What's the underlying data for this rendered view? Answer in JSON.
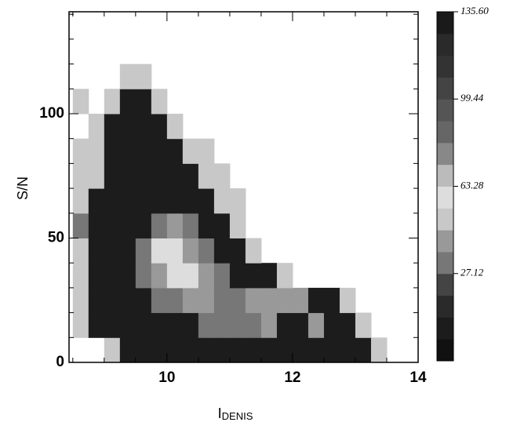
{
  "chart_data": {
    "type": "heatmap",
    "xlabel": "I",
    "xlabel_sub": "DENIS",
    "ylabel": "S/N",
    "xlim": [
      8.44,
      14
    ],
    "ylim": [
      0,
      141
    ],
    "xticks": [
      10,
      12,
      14
    ],
    "yticks": [
      0,
      50,
      100
    ],
    "xminorticks": [
      8.5,
      9,
      9.5,
      10.5,
      11,
      11.5,
      12.5,
      13,
      13.5
    ],
    "yminorticks": [
      10,
      20,
      30,
      40,
      60,
      70,
      80,
      90,
      110,
      120,
      130,
      140
    ],
    "xbins": [
      8.5,
      8.75,
      9,
      9.25,
      9.5,
      9.75,
      10,
      10.25,
      10.5,
      10.75,
      11,
      11.25,
      11.5,
      11.75,
      12,
      12.25,
      12.5,
      12.75,
      13,
      13.25,
      13.5,
      13.75
    ],
    "ybins": [
      0,
      10,
      20,
      30,
      40,
      50,
      60,
      70,
      80,
      90,
      100,
      110,
      120
    ],
    "z": [
      [
        null,
        null,
        48,
        5,
        5,
        5,
        5,
        5,
        5,
        5,
        5,
        5,
        5,
        5,
        5,
        5,
        5,
        5,
        5,
        48,
        null
      ],
      [
        48,
        5,
        5,
        5,
        5,
        5,
        5,
        5,
        30,
        30,
        30,
        30,
        40,
        5,
        5,
        40,
        5,
        5,
        48,
        null,
        null
      ],
      [
        48,
        5,
        5,
        5,
        5,
        30,
        30,
        40,
        40,
        30,
        30,
        40,
        40,
        40,
        40,
        5,
        5,
        48,
        null,
        null,
        null
      ],
      [
        48,
        5,
        5,
        5,
        30,
        40,
        58,
        58,
        40,
        30,
        5,
        5,
        5,
        48,
        null,
        null,
        null,
        null,
        null,
        null,
        null
      ],
      [
        48,
        5,
        5,
        5,
        30,
        58,
        58,
        40,
        30,
        5,
        5,
        48,
        null,
        null,
        null,
        null,
        null,
        null,
        null,
        null,
        null
      ],
      [
        30,
        5,
        5,
        5,
        5,
        30,
        40,
        30,
        5,
        5,
        48,
        null,
        null,
        null,
        null,
        null,
        null,
        null,
        null,
        null,
        null
      ],
      [
        48,
        5,
        5,
        5,
        5,
        5,
        5,
        5,
        5,
        48,
        48,
        null,
        null,
        null,
        null,
        null,
        null,
        null,
        null,
        null,
        null
      ],
      [
        48,
        48,
        5,
        5,
        5,
        5,
        5,
        5,
        48,
        48,
        null,
        null,
        null,
        null,
        null,
        null,
        null,
        null,
        null,
        null,
        null
      ],
      [
        48,
        48,
        5,
        5,
        5,
        5,
        5,
        48,
        48,
        null,
        null,
        null,
        null,
        null,
        null,
        null,
        null,
        null,
        null,
        null,
        null
      ],
      [
        null,
        48,
        5,
        5,
        5,
        5,
        48,
        null,
        null,
        null,
        null,
        null,
        null,
        null,
        null,
        null,
        null,
        null,
        null,
        null,
        null
      ],
      [
        48,
        null,
        48,
        5,
        5,
        48,
        null,
        null,
        null,
        null,
        null,
        null,
        null,
        null,
        null,
        null,
        null,
        null,
        null,
        null,
        null
      ],
      [
        null,
        null,
        null,
        48,
        48,
        null,
        null,
        null,
        null,
        null,
        null,
        null,
        null,
        null,
        null,
        null,
        null,
        null,
        null,
        null,
        null
      ]
    ],
    "colorbar": {
      "lim": [
        -9.04,
        135.6
      ],
      "colors": [
        "#111111",
        "#1c1c1c",
        "#2a2a2a",
        "#444444",
        "#777777",
        "#999999",
        "#c8c8c8",
        "#dddddd",
        "#bbbbbb",
        "#888888",
        "#666666",
        "#555555",
        "#444444",
        "#333333",
        "#2a2a2a",
        "#1a1a1a"
      ],
      "ticks": [
        {
          "value": 27.12,
          "label": "27.12"
        },
        {
          "value": 63.28,
          "label": "63.28"
        },
        {
          "value": 99.44,
          "label": "99.44"
        },
        {
          "value": 135.6,
          "label": "135.60"
        }
      ]
    }
  }
}
